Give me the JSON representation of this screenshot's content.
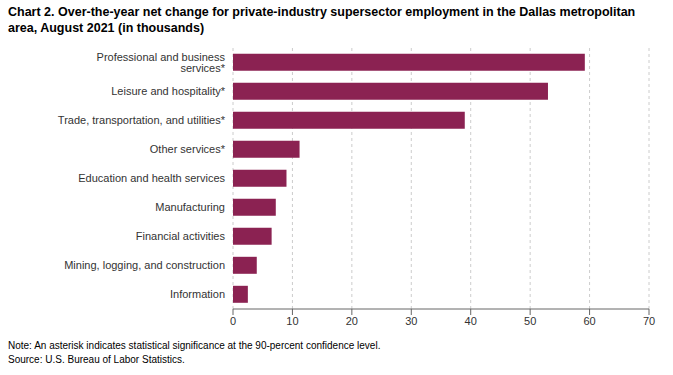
{
  "chart_data": {
    "type": "bar",
    "orientation": "horizontal",
    "title": "Chart 2. Over-the-year net change for private-industry supersector employment in the Dallas metropolitan area, August 2021 (in thousands)",
    "annotations": [
      "Note: An asterisk indicates statistical significance at the 90-percent confidence level.",
      "Source: U.S. Bureau of Labor Statistics."
    ],
    "categories": [
      "Information",
      "Mining, logging, and construction",
      "Financial activities",
      "Manufacturing",
      "Education and health services",
      "Other services*",
      "Trade, transportation, and utilities*",
      "Leisure and hospitality*",
      "Professional and business services*"
    ],
    "values": [
      2.5,
      4.0,
      6.5,
      7.2,
      9.0,
      11.2,
      39.0,
      53.0,
      59.2
    ],
    "color": "#8B2252",
    "xlim": [
      0,
      70
    ],
    "xticks": [
      0,
      10,
      20,
      30,
      40,
      50,
      60,
      70
    ],
    "grid": true
  }
}
